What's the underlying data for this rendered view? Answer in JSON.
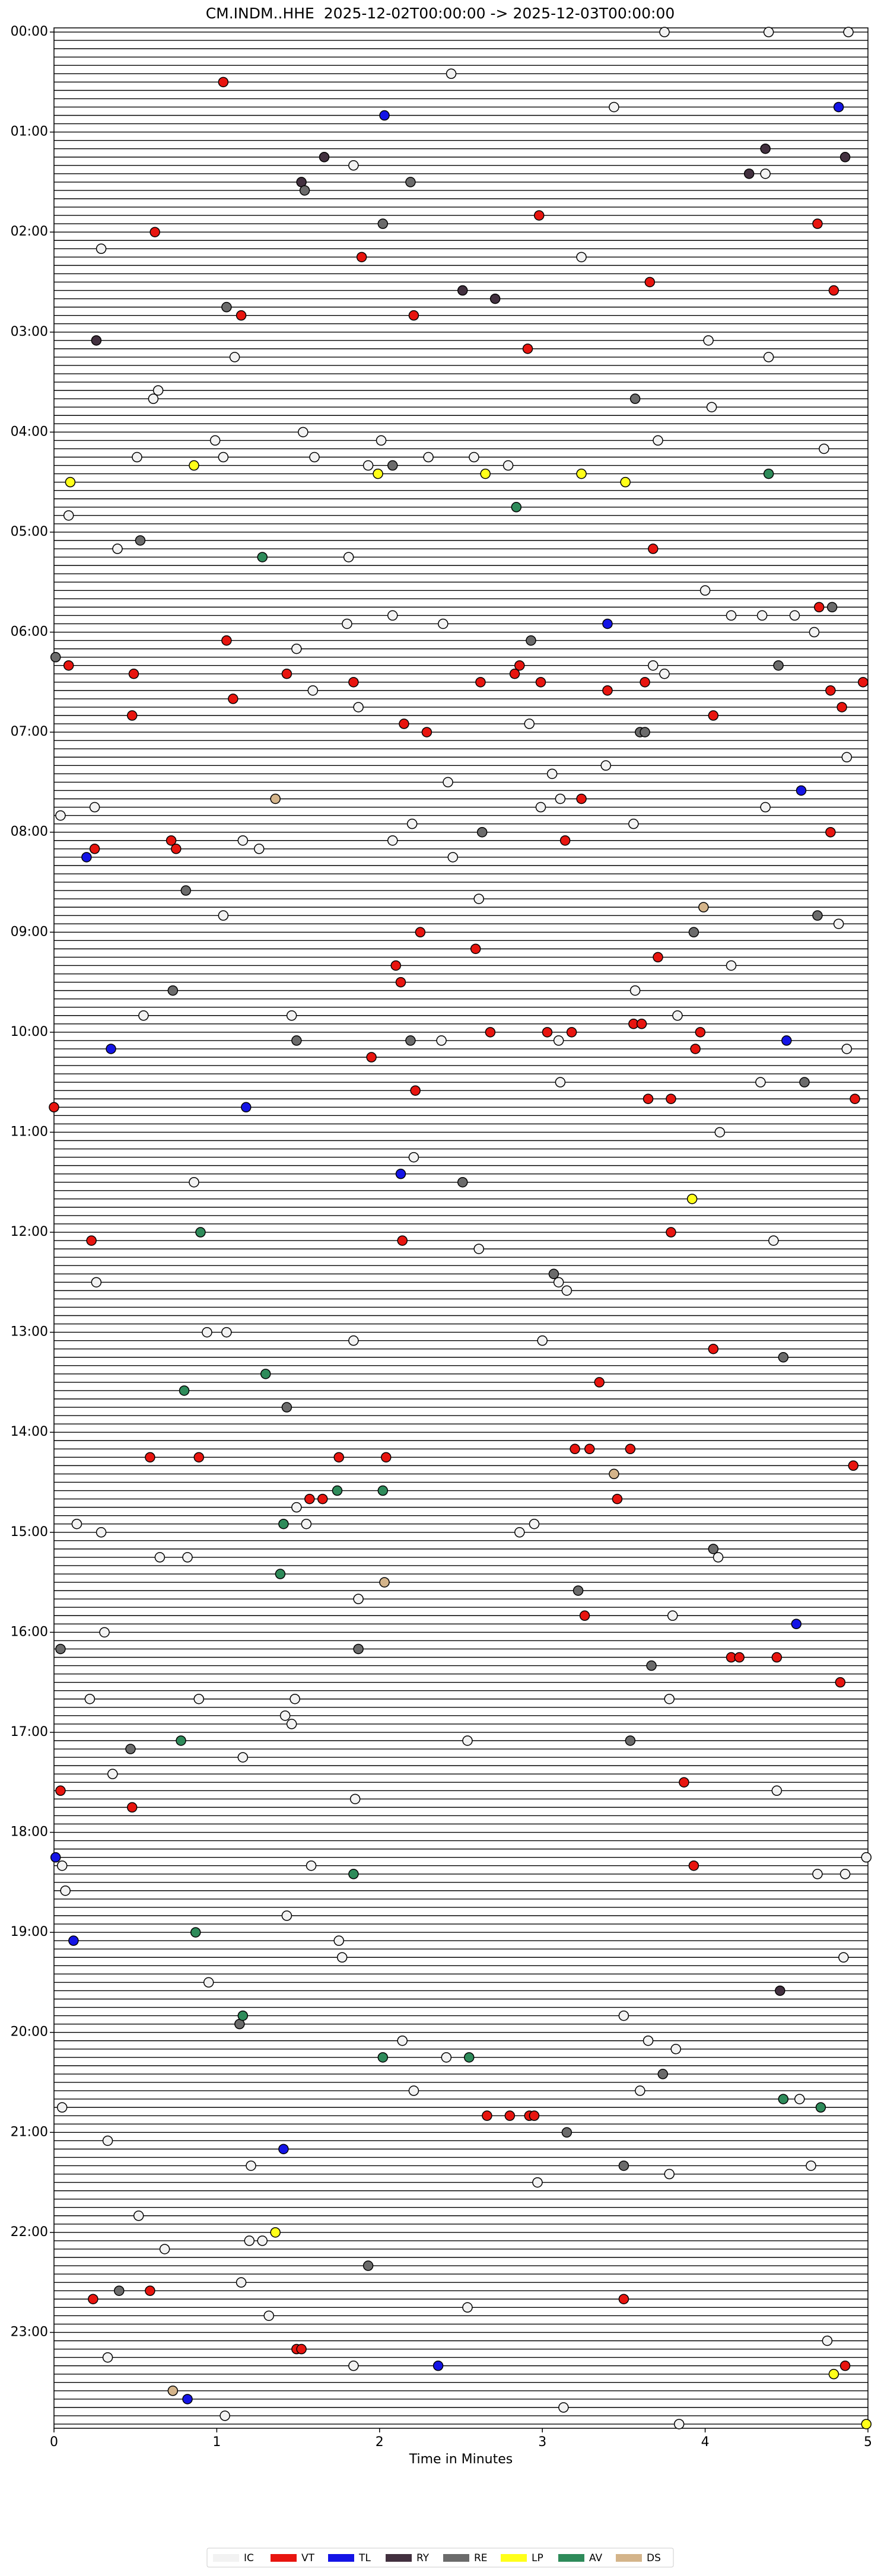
{
  "chart_data": {
    "type": "helicorder",
    "title": "CM.INDM..HHE  2025-12-02T00:00:00 -> 2025-12-03T00:00:00",
    "xlabel": "Time in Minutes",
    "xlim": [
      0,
      5
    ],
    "xticks": [
      0,
      1,
      2,
      3,
      4,
      5
    ],
    "ylim": [
      0,
      1440
    ],
    "yticks": [
      {
        "value": 0,
        "label": "00:00"
      },
      {
        "value": 60,
        "label": "01:00"
      },
      {
        "value": 120,
        "label": "02:00"
      },
      {
        "value": 180,
        "label": "03:00"
      },
      {
        "value": 240,
        "label": "04:00"
      },
      {
        "value": 300,
        "label": "05:00"
      },
      {
        "value": 360,
        "label": "06:00"
      },
      {
        "value": 420,
        "label": "07:00"
      },
      {
        "value": 480,
        "label": "08:00"
      },
      {
        "value": 540,
        "label": "09:00"
      },
      {
        "value": 600,
        "label": "10:00"
      },
      {
        "value": 660,
        "label": "11:00"
      },
      {
        "value": 720,
        "label": "12:00"
      },
      {
        "value": 780,
        "label": "13:00"
      },
      {
        "value": 840,
        "label": "14:00"
      },
      {
        "value": 900,
        "label": "15:00"
      },
      {
        "value": 960,
        "label": "16:00"
      },
      {
        "value": 1020,
        "label": "17:00"
      },
      {
        "value": 1080,
        "label": "18:00"
      },
      {
        "value": 1140,
        "label": "19:00"
      },
      {
        "value": 1200,
        "label": "20:00"
      },
      {
        "value": 1260,
        "label": "21:00"
      },
      {
        "value": 1320,
        "label": "22:00"
      },
      {
        "value": 1380,
        "label": "23:00"
      }
    ],
    "series": [
      {
        "name": "IC",
        "color": "#f2f2f2",
        "x": [
          3.75,
          4.39,
          4.88,
          2.44,
          3.44,
          1.84,
          4.37,
          0.29,
          3.24,
          4.02,
          1.11,
          4.39,
          0.64,
          0.61,
          4.04,
          1.53,
          0.99,
          2.01,
          3.71,
          4.73,
          0.51,
          1.04,
          1.6,
          2.3,
          2.58,
          1.93,
          2.79,
          0.09,
          0.39,
          1.81,
          4.0,
          4.16,
          4.35,
          4.55,
          4.67,
          1.8,
          2.08,
          2.39,
          1.49,
          3.68,
          1.59,
          3.75,
          1.87,
          2.92,
          4.87,
          3.39,
          2.42,
          3.06,
          2.99,
          3.11,
          4.37,
          0.04,
          0.25,
          2.2,
          3.56,
          1.16,
          1.26,
          2.08,
          2.45,
          2.61,
          1.04,
          4.82,
          4.16,
          3.57,
          0.55,
          1.46,
          3.83,
          2.38,
          3.1,
          4.87,
          3.11,
          4.34,
          4.09,
          2.21,
          0.86,
          4.42,
          2.61,
          0.26,
          3.1,
          3.15,
          0.94,
          1.06,
          1.84,
          3.0,
          1.49,
          0.14,
          0.29,
          1.55,
          2.86,
          2.95,
          4.08,
          0.65,
          0.82,
          1.87,
          3.8,
          0.31,
          0.22,
          0.89,
          1.48,
          3.78,
          1.42,
          1.46,
          2.54,
          1.16,
          0.36,
          1.85,
          4.44,
          4.99,
          0.05,
          1.58,
          4.69,
          4.86,
          0.07,
          1.43,
          1.75,
          1.77,
          4.85,
          0.95,
          3.5,
          2.14,
          3.65,
          2.41,
          3.82,
          2.21,
          3.6,
          4.58,
          0.05,
          0.33,
          1.21,
          3.78,
          4.65,
          2.97,
          0.52,
          1.2,
          1.28,
          0.68,
          1.15,
          1.32,
          2.54,
          4.75,
          0.33,
          1.84,
          1.05,
          3.13,
          3.84
        ],
        "values": [
          0,
          0,
          0,
          25,
          45,
          80,
          85,
          130,
          135,
          185,
          195,
          195,
          215,
          220,
          225,
          240,
          245,
          245,
          245,
          250,
          255,
          255,
          255,
          255,
          255,
          260,
          260,
          290,
          310,
          315,
          335,
          350,
          350,
          350,
          360,
          355,
          350,
          355,
          370,
          380,
          395,
          385,
          405,
          415,
          435,
          440,
          450,
          445,
          465,
          460,
          465,
          470,
          465,
          475,
          475,
          485,
          490,
          485,
          495,
          520,
          530,
          535,
          560,
          575,
          590,
          590,
          590,
          605,
          605,
          610,
          630,
          630,
          660,
          675,
          690,
          725,
          730,
          750,
          750,
          755,
          780,
          780,
          785,
          785,
          885,
          895,
          900,
          895,
          900,
          895,
          915,
          915,
          915,
          940,
          950,
          960,
          1000,
          1000,
          1000,
          1000,
          1010,
          1015,
          1025,
          1035,
          1045,
          1060,
          1055,
          1095,
          1100,
          1100,
          1105,
          1105,
          1115,
          1130,
          1145,
          1155,
          1155,
          1170,
          1190,
          1205,
          1205,
          1215,
          1210,
          1235,
          1235,
          1240,
          1245,
          1265,
          1280,
          1285,
          1280,
          1290,
          1310,
          1325,
          1325,
          1330,
          1350,
          1370,
          1365,
          1385,
          1395,
          1400,
          1430,
          1425,
          1435
        ]
      },
      {
        "name": "VT",
        "color": "#e8150f",
        "x": [
          1.04,
          2.98,
          4.69,
          0.62,
          1.89,
          3.66,
          4.79,
          1.15,
          2.21,
          2.91,
          3.68,
          4.7,
          1.06,
          0.09,
          0.49,
          1.43,
          2.86,
          2.83,
          1.84,
          2.62,
          2.99,
          3.4,
          3.63,
          4.77,
          4.97,
          1.1,
          0.48,
          4.05,
          4.84,
          2.15,
          2.29,
          3.24,
          3.14,
          4.77,
          0.72,
          0.75,
          0.25,
          2.25,
          2.59,
          2.1,
          2.13,
          3.71,
          2.68,
          3.03,
          3.18,
          3.56,
          3.61,
          3.97,
          3.94,
          1.95,
          2.22,
          3.65,
          3.79,
          4.92,
          0.0,
          0.23,
          2.14,
          3.79,
          4.05,
          3.35,
          0.59,
          0.89,
          1.75,
          2.04,
          3.2,
          3.29,
          3.54,
          4.91,
          1.57,
          1.65,
          3.46,
          3.26,
          4.16,
          4.21,
          4.44,
          4.83,
          0.04,
          0.48,
          3.87,
          3.93,
          2.66,
          2.8,
          2.92,
          2.95,
          0.59,
          0.24,
          3.5,
          1.49,
          1.52,
          4.86
        ],
        "values": [
          30,
          110,
          115,
          120,
          135,
          150,
          155,
          170,
          170,
          190,
          310,
          345,
          365,
          380,
          385,
          385,
          380,
          385,
          390,
          390,
          390,
          395,
          390,
          395,
          390,
          400,
          410,
          410,
          405,
          415,
          420,
          460,
          485,
          480,
          485,
          490,
          490,
          540,
          550,
          560,
          570,
          555,
          600,
          600,
          600,
          595,
          595,
          600,
          610,
          615,
          635,
          640,
          640,
          640,
          645,
          725,
          725,
          720,
          790,
          810,
          855,
          855,
          855,
          855,
          850,
          850,
          850,
          860,
          880,
          880,
          880,
          950,
          975,
          975,
          975,
          990,
          1055,
          1065,
          1050,
          1100,
          1250,
          1250,
          1250,
          1250,
          1355,
          1360,
          1360,
          1390,
          1390,
          1400
        ]
      },
      {
        "name": "TL",
        "color": "#1414e6",
        "x": [
          2.03,
          4.82,
          3.4,
          4.59,
          0.2,
          4.5,
          0.35,
          1.18,
          2.13,
          4.56,
          0.01,
          0.12,
          1.41,
          2.36,
          0.82
        ],
        "values": [
          50,
          45,
          355,
          455,
          495,
          605,
          610,
          645,
          685,
          955,
          1095,
          1145,
          1270,
          1400,
          1420
        ]
      },
      {
        "name": "RY",
        "color": "#42303f",
        "x": [
          4.37,
          1.66,
          4.86,
          4.27,
          1.52,
          2.51,
          2.71,
          0.26,
          4.46
        ],
        "values": [
          70,
          75,
          75,
          85,
          90,
          155,
          160,
          185,
          1175
        ]
      },
      {
        "name": "RE",
        "color": "#6b6b6b",
        "x": [
          1.54,
          2.19,
          2.02,
          1.06,
          3.57,
          2.08,
          0.53,
          4.78,
          2.93,
          0.01,
          4.45,
          3.6,
          3.63,
          2.63,
          0.81,
          4.69,
          3.93,
          0.73,
          1.49,
          2.19,
          4.61,
          2.51,
          3.07,
          4.48,
          1.43,
          4.05,
          3.22,
          0.04,
          1.87,
          3.67,
          3.54,
          0.47,
          1.14,
          3.74,
          3.15,
          3.5,
          1.93,
          0.4
        ],
        "values": [
          95,
          90,
          115,
          165,
          220,
          260,
          305,
          345,
          365,
          375,
          380,
          420,
          420,
          480,
          515,
          530,
          540,
          575,
          605,
          605,
          630,
          690,
          745,
          795,
          825,
          910,
          935,
          970,
          970,
          980,
          1025,
          1030,
          1195,
          1225,
          1260,
          1280,
          1340,
          1355
        ]
      },
      {
        "name": "LP",
        "color": "#ffff1a",
        "x": [
          0.86,
          0.1,
          1.99,
          2.65,
          3.24,
          3.51,
          3.92,
          1.36,
          4.79,
          4.99
        ],
        "values": [
          260,
          270,
          265,
          265,
          265,
          270,
          700,
          1320,
          1405,
          1435
        ]
      },
      {
        "name": "AV",
        "color": "#2e8b5a",
        "x": [
          4.39,
          2.84,
          1.28,
          0.9,
          1.3,
          0.8,
          1.74,
          2.02,
          1.41,
          1.39,
          0.78,
          1.84,
          0.87,
          1.16,
          2.02,
          2.55,
          4.48,
          4.71
        ],
        "values": [
          265,
          285,
          315,
          720,
          805,
          815,
          875,
          875,
          895,
          925,
          1025,
          1105,
          1140,
          1190,
          1215,
          1215,
          1240,
          1245
        ]
      },
      {
        "name": "DS",
        "color": "#d4b48a",
        "x": [
          1.36,
          3.99,
          3.44,
          2.03,
          0.73
        ],
        "values": [
          460,
          525,
          865,
          930,
          1415
        ]
      }
    ]
  }
}
